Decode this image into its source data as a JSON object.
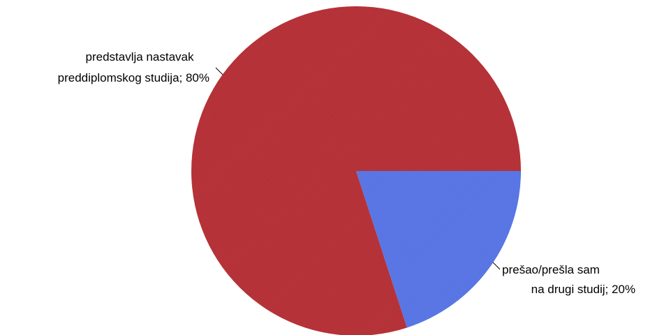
{
  "chart_data": {
    "type": "pie",
    "title": "",
    "slices": [
      {
        "label_lines": [
          "predstavlja nastavak",
          "preddiplomskog studija; 80%"
        ],
        "value": 80,
        "color": "#b8343a"
      },
      {
        "label_lines": [
          "prešao/prešla sam",
          "na drugi studij; 20%"
        ],
        "value": 20,
        "color": "#5b78e6"
      }
    ],
    "legend": "none",
    "data_labels": "outside with leader lines"
  }
}
